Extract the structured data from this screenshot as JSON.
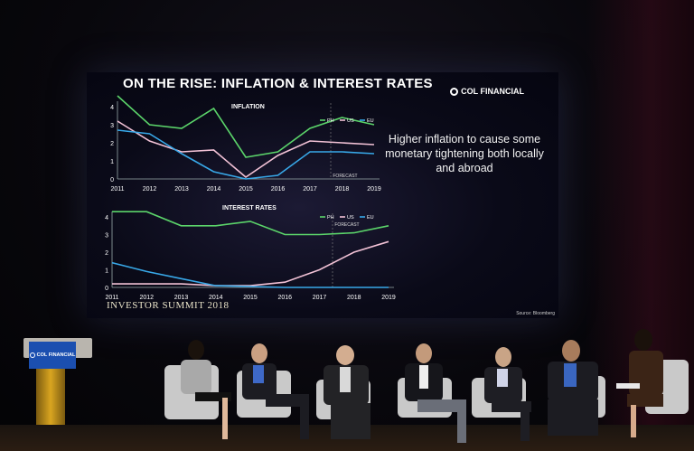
{
  "slide": {
    "title": "ON THE RISE: INFLATION & INTEREST RATES",
    "brand": "COL FINANCIAL",
    "callout": "Higher inflation to cause some monetary tightening both locally and abroad",
    "event": "INVESTOR SUMMIT 2018",
    "source": "Source: Bloomberg"
  },
  "podium": {
    "sign": "COL FINANCIAL"
  },
  "colors": {
    "ph": "#5bd46a",
    "us": "#f2c2d6",
    "eu": "#38a8e8",
    "screen_bg": "#0a0a18",
    "podium_sign": "#1b4fb0"
  },
  "chart_data": [
    {
      "type": "line",
      "title": "INFLATION",
      "x": [
        2011,
        2012,
        2013,
        2014,
        2015,
        2016,
        2017,
        2018,
        2019
      ],
      "ylim": [
        0,
        4
      ],
      "yticks": [
        0,
        1,
        2,
        3,
        4
      ],
      "forecast_label": "FORECAST",
      "series": [
        {
          "name": "PH",
          "values": [
            4.6,
            3.0,
            2.8,
            3.9,
            1.2,
            1.5,
            2.8,
            3.4,
            3.0
          ]
        },
        {
          "name": "US",
          "values": [
            3.2,
            2.1,
            1.5,
            1.6,
            0.1,
            1.3,
            2.1,
            2.0,
            1.9
          ]
        },
        {
          "name": "EU",
          "values": [
            2.7,
            2.5,
            1.4,
            0.4,
            0.0,
            0.2,
            1.5,
            1.5,
            1.4
          ]
        }
      ]
    },
    {
      "type": "line",
      "title": "INTEREST RATES",
      "x": [
        2011,
        2012,
        2013,
        2014,
        2015,
        2016,
        2017,
        2018,
        2019
      ],
      "ylim": [
        0,
        4
      ],
      "yticks": [
        0,
        1,
        2,
        3,
        4
      ],
      "forecast_label": "FORECAST",
      "series": [
        {
          "name": "PH",
          "values": [
            4.3,
            4.3,
            3.5,
            3.5,
            3.75,
            3.0,
            3.0,
            3.1,
            3.5
          ]
        },
        {
          "name": "US",
          "values": [
            0.2,
            0.2,
            0.2,
            0.1,
            0.1,
            0.3,
            1.0,
            2.0,
            2.6
          ]
        },
        {
          "name": "EU",
          "values": [
            1.4,
            0.9,
            0.5,
            0.1,
            0.05,
            0.0,
            0.0,
            0.0,
            0.0
          ]
        }
      ]
    }
  ]
}
